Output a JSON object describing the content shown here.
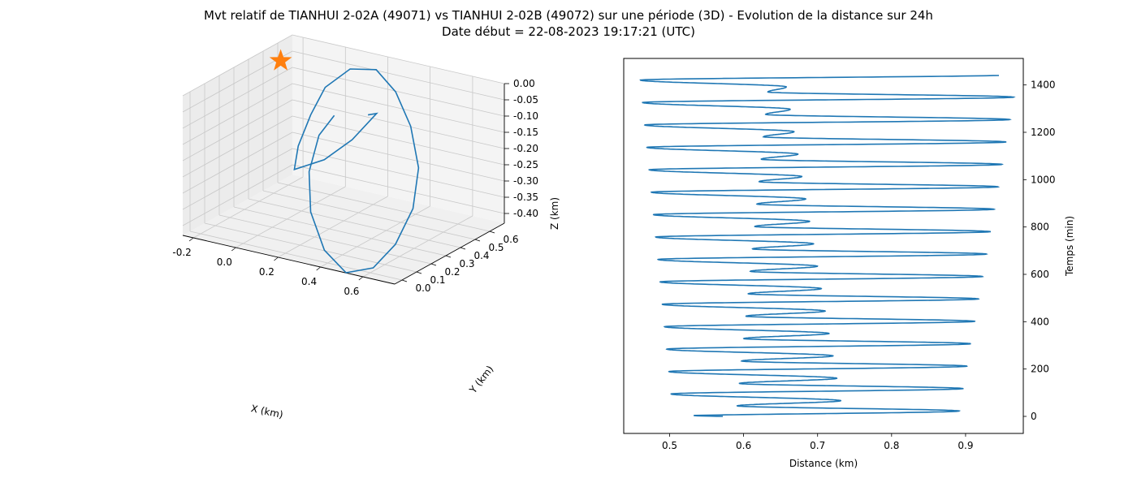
{
  "figure": {
    "title_line1": "Mvt relatif de TIANHUI 2-02A (49071) vs TIANHUI 2-02B (49072) sur une période (3D) - Evolution de la distance sur 24h",
    "title_line2": "Date début = 22-08-2023 19:17:21 (UTC)"
  },
  "colors": {
    "line": "#1f77b4",
    "marker": "#ff7f0e",
    "pane": "#f2f2f2",
    "grid": "#c8c8c8"
  },
  "chart_data": [
    {
      "type": "line3d",
      "xlabel": "X (km)",
      "ylabel": "Y (km)",
      "zlabel": "Z (km)",
      "x_ticks": [
        "-0.2",
        "0.0",
        "0.2",
        "0.4",
        "0.6"
      ],
      "y_ticks": [
        "0.0",
        "0.1",
        "0.2",
        "0.3",
        "0.4",
        "0.5",
        "0.6"
      ],
      "z_ticks": [
        "0.00",
        "-0.05",
        "-0.10",
        "-0.15",
        "-0.20",
        "-0.25",
        "-0.30",
        "-0.35",
        "-0.40"
      ],
      "xlim": [
        -0.25,
        0.75
      ],
      "ylim": [
        -0.05,
        0.7
      ],
      "zlim": [
        -0.43,
        0.0
      ],
      "marker": {
        "symbol": "star",
        "x": -0.25,
        "y": 0.62,
        "z": -0.06
      },
      "trajectory": [
        {
          "x": 0.21,
          "y": 0.55,
          "z": -0.14
        },
        {
          "x": 0.23,
          "y": 0.58,
          "z": -0.14
        },
        {
          "x": 0.17,
          "y": 0.5,
          "z": -0.21
        },
        {
          "x": 0.08,
          "y": 0.44,
          "z": -0.27
        },
        {
          "x": -0.02,
          "y": 0.38,
          "z": -0.3
        },
        {
          "x": -0.05,
          "y": 0.45,
          "z": -0.25
        },
        {
          "x": -0.06,
          "y": 0.55,
          "z": -0.18
        },
        {
          "x": -0.04,
          "y": 0.62,
          "z": -0.11
        },
        {
          "x": 0.05,
          "y": 0.66,
          "z": -0.05
        },
        {
          "x": 0.18,
          "y": 0.65,
          "z": -0.03
        },
        {
          "x": 0.32,
          "y": 0.58,
          "z": -0.06
        },
        {
          "x": 0.46,
          "y": 0.48,
          "z": -0.12
        },
        {
          "x": 0.58,
          "y": 0.36,
          "z": -0.2
        },
        {
          "x": 0.65,
          "y": 0.22,
          "z": -0.28
        },
        {
          "x": 0.65,
          "y": 0.1,
          "z": -0.36
        },
        {
          "x": 0.6,
          "y": 0.02,
          "z": -0.42
        },
        {
          "x": 0.5,
          "y": -0.02,
          "z": -0.44
        },
        {
          "x": 0.37,
          "y": 0.02,
          "z": -0.4
        },
        {
          "x": 0.25,
          "y": 0.1,
          "z": -0.32
        },
        {
          "x": 0.16,
          "y": 0.22,
          "z": -0.24
        },
        {
          "x": 0.11,
          "y": 0.36,
          "z": -0.17
        },
        {
          "x": 0.12,
          "y": 0.45,
          "z": -0.13
        }
      ]
    },
    {
      "type": "line",
      "xlabel": "Distance (km)",
      "ylabel": "Temps (min)",
      "xlim": [
        0.438,
        0.978
      ],
      "ylim": [
        -72,
        1512
      ],
      "x_ticks": [
        0.5,
        0.6,
        0.7,
        0.8,
        0.9
      ],
      "y_ticks": [
        0,
        200,
        400,
        600,
        800,
        1000,
        1200,
        1400
      ],
      "y_axis_position": "right",
      "t_max_min": 1440,
      "orbit_period_min": 94.7,
      "min_dist_start_km": 0.505,
      "min_dist_end_km": 0.46,
      "max_dist_start_km": 0.89,
      "max_dist_end_km": 0.97,
      "secondary_min_start_km": 0.59,
      "secondary_min_end_km": 0.635,
      "secondary_max_start_km": 0.735,
      "secondary_max_end_km": 0.655,
      "start_distance_km": 0.572
    }
  ]
}
